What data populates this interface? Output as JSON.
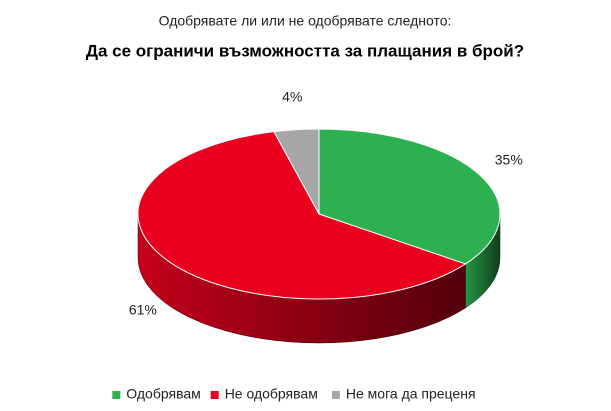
{
  "chart_data": {
    "type": "pie3d",
    "subtitle": "Одобрявате ли или не одобрявате следното:",
    "title": "Да се ограничи възможността за плащания в брой?",
    "categories": [
      "Одобрявам",
      "Не одобрявам",
      "Не мога да преценя"
    ],
    "values": [
      35,
      61,
      4
    ],
    "value_labels": [
      "35%",
      "61%",
      "4%"
    ],
    "colors": [
      "#2db050",
      "#e8001e",
      "#a6a6a6"
    ],
    "legend": "bottom"
  }
}
